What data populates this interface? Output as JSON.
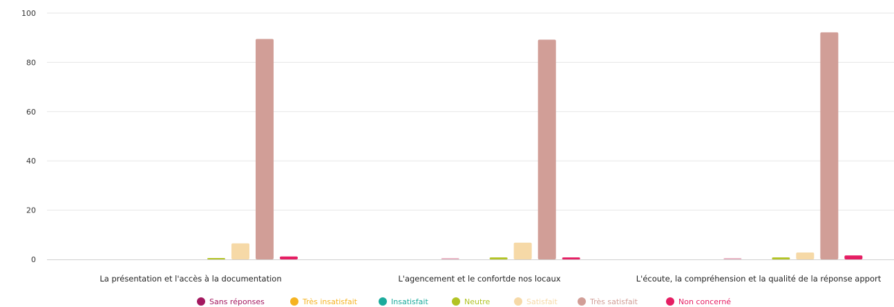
{
  "chart_data": {
    "type": "bar",
    "title": "",
    "xlabel": "",
    "ylabel": "",
    "ylim": [
      0,
      100
    ],
    "yticks": [
      "0",
      "20",
      "40",
      "60",
      "80",
      "100"
    ],
    "grid": true,
    "legend_position": "bottom",
    "categories": [
      "La présentation et l'accès à la documentation",
      "L'agencement et le confortde nos locaux",
      "L'écoute, la compréhension et la qualité de la réponse apport"
    ],
    "series": [
      {
        "name": "Sans réponses",
        "color": "#a3185f",
        "values": [
          0,
          0,
          0
        ]
      },
      {
        "name": "Très insatisfait",
        "color": "#f5b321",
        "values": [
          0,
          0.4,
          0.4
        ]
      },
      {
        "name": "Insatisfait",
        "color": "#1bab9c",
        "values": [
          0,
          0,
          0
        ]
      },
      {
        "name": "Neutre",
        "color": "#b2c324",
        "values": [
          0.4,
          0.8,
          0.8
        ]
      },
      {
        "name": "Satisfait",
        "color": "#f6d9a7",
        "values": [
          6.5,
          6.8,
          2.8
        ]
      },
      {
        "name": "Très satisfait",
        "color": "#d19e97",
        "values": [
          89.5,
          89.2,
          92.2
        ]
      },
      {
        "name": "Non concerné",
        "color": "#e51e63",
        "values": [
          1.2,
          0.8,
          1.6
        ]
      }
    ],
    "bar_colors_overrides": {
      "series_1_cat_1": "#e8b4c4",
      "series_1_cat_2": "#e8b4c4"
    }
  }
}
